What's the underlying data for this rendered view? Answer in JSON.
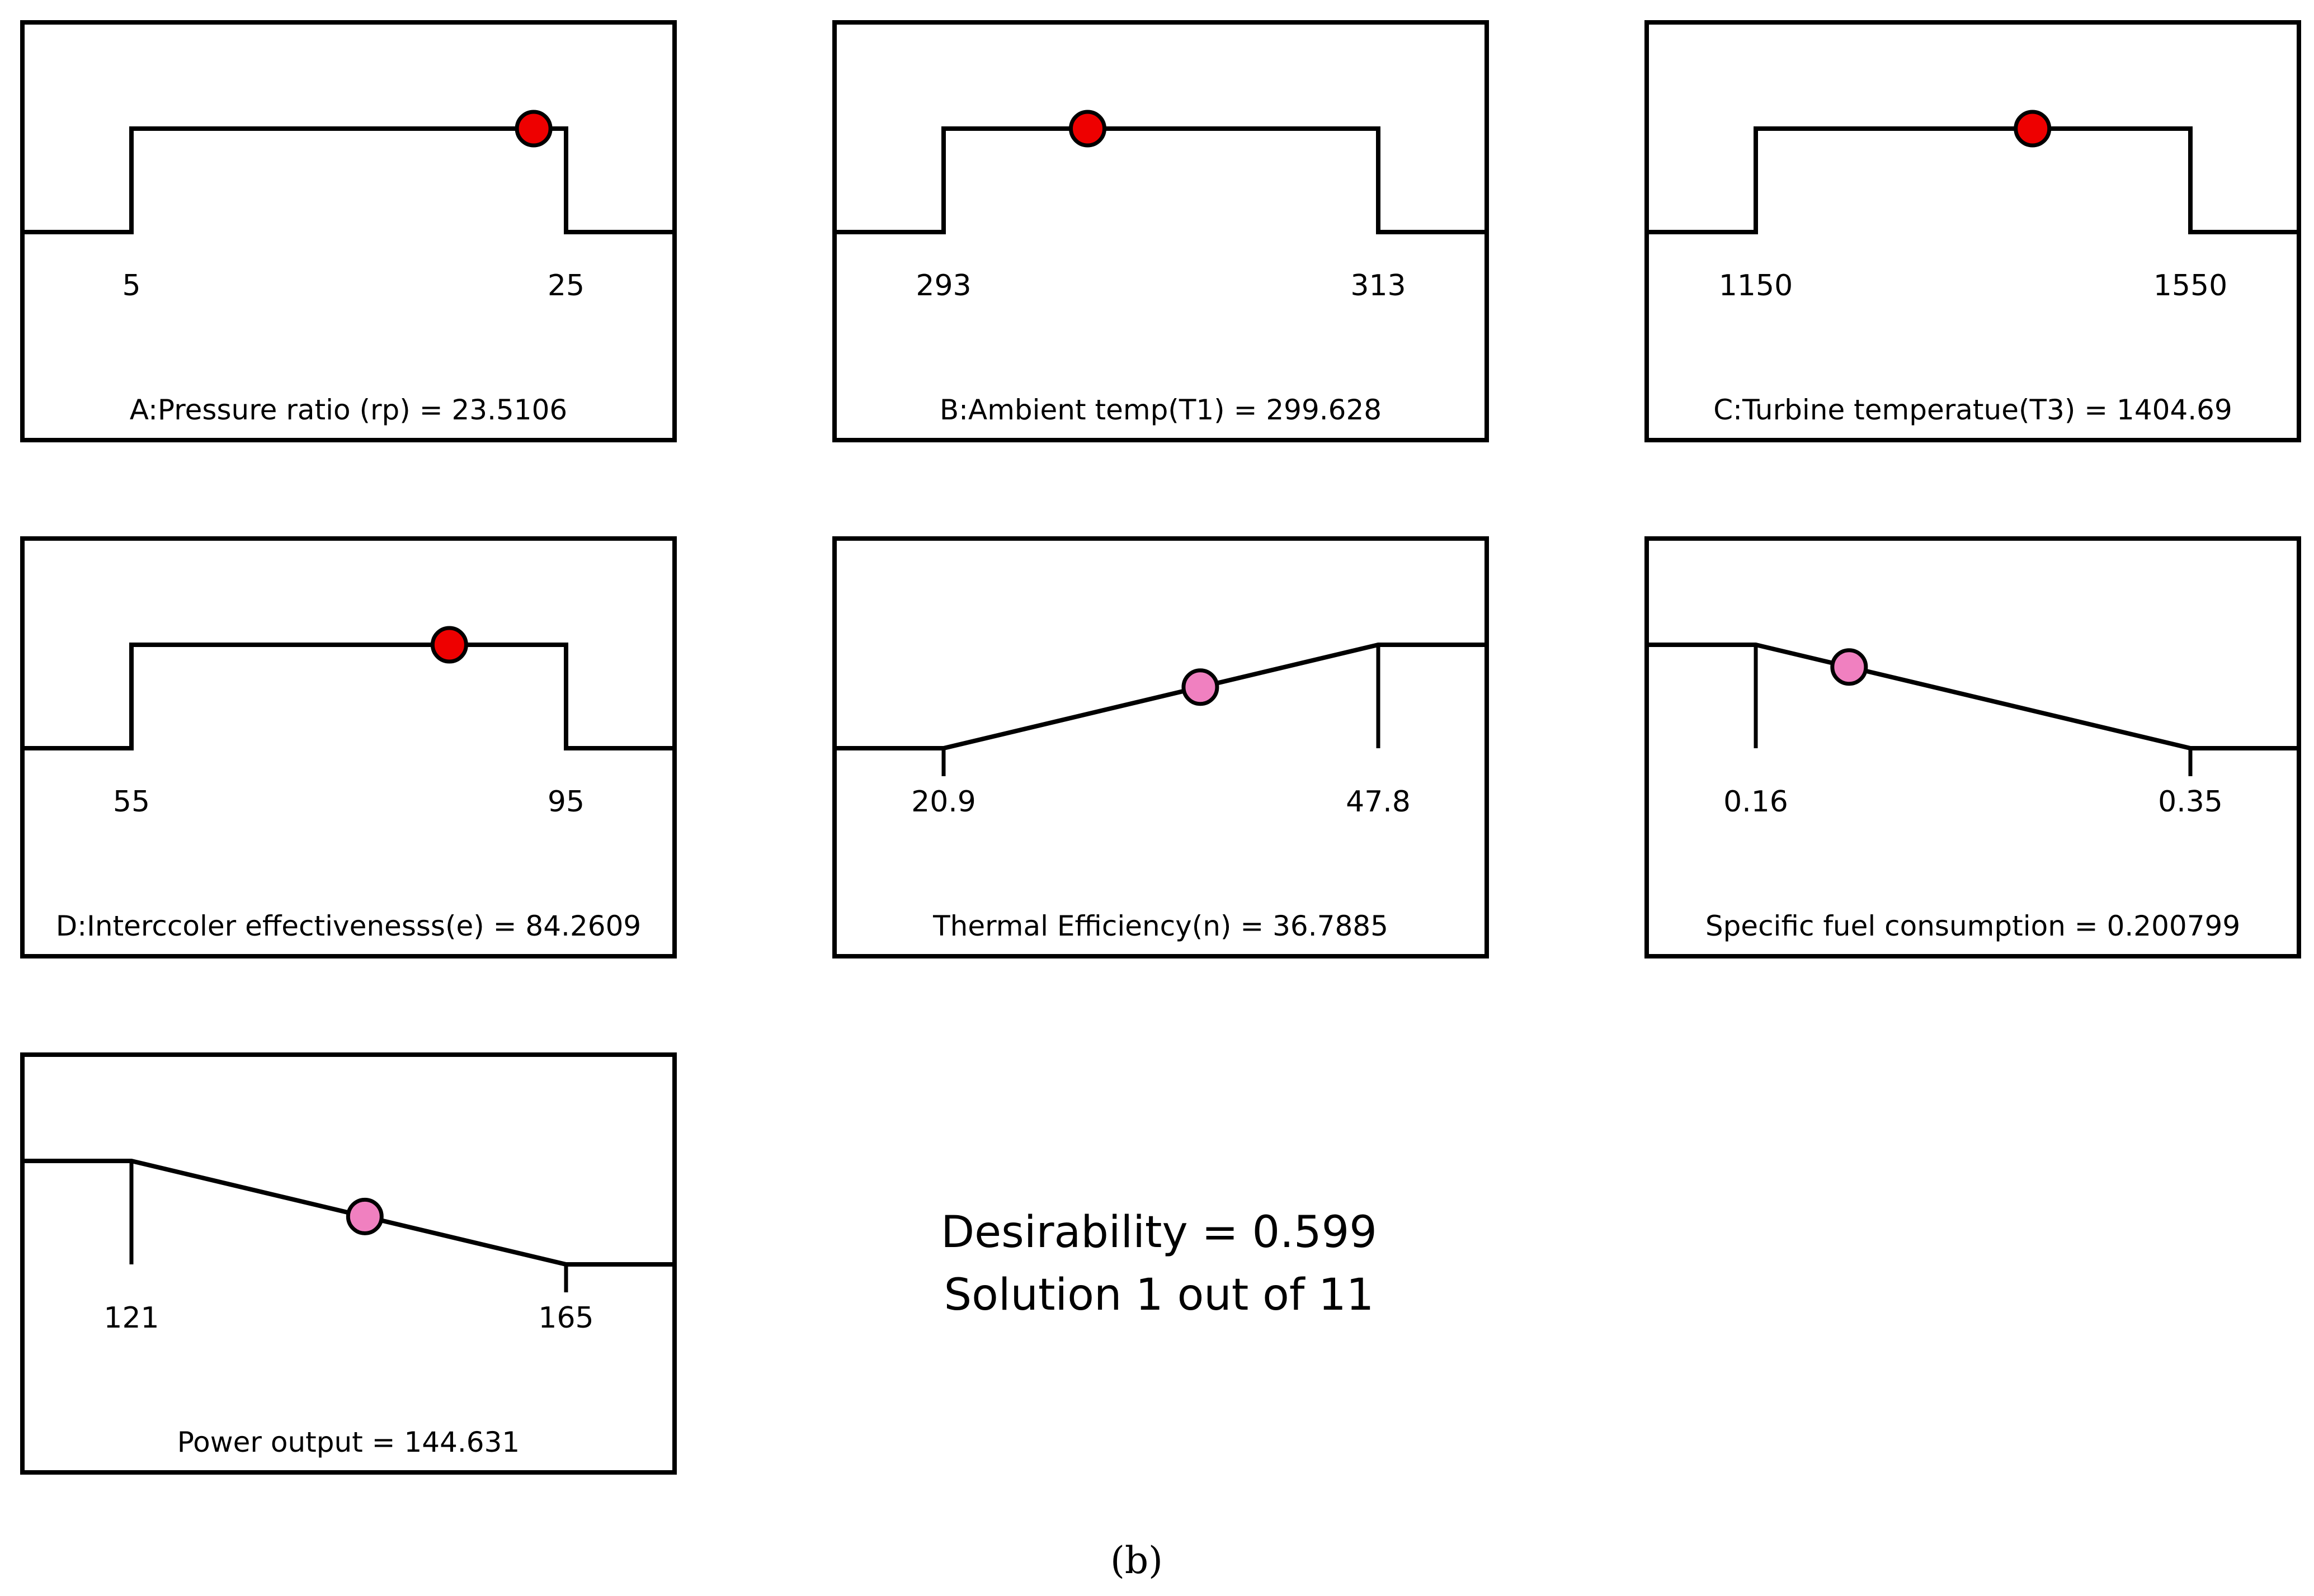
{
  "chart_data": [
    {
      "type": "line",
      "kind": "factor",
      "label": "A:Pressure ratio (rp) = 23.5106",
      "low_label": "5",
      "high_label": "25",
      "low": 5,
      "high": 25,
      "value": 23.5106,
      "shape": "in-range",
      "marker_color": "#ee0000"
    },
    {
      "type": "line",
      "kind": "factor",
      "label": "B:Ambient temp(T1) = 299.628",
      "low_label": "293",
      "high_label": "313",
      "low": 293,
      "high": 313,
      "value": 299.628,
      "shape": "in-range",
      "marker_color": "#ee0000"
    },
    {
      "type": "line",
      "kind": "factor",
      "label": "C:Turbine temperatue(T3) = 1404.69",
      "low_label": "1150",
      "high_label": "1550",
      "low": 1150,
      "high": 1550,
      "value": 1404.69,
      "shape": "in-range",
      "marker_color": "#ee0000"
    },
    {
      "type": "line",
      "kind": "factor",
      "label": "D:Interccoler effectivenesss(e) = 84.2609",
      "low_label": "55",
      "high_label": "95",
      "low": 55,
      "high": 95,
      "value": 84.2609,
      "shape": "in-range",
      "marker_color": "#ee0000"
    },
    {
      "type": "line",
      "kind": "response",
      "label": "Thermal Efficiency(n) = 36.7885",
      "low_label": "20.9",
      "high_label": "47.8",
      "low": 20.9,
      "high": 47.8,
      "value": 36.7885,
      "shape": "maximize",
      "marker_color": "#f080c0"
    },
    {
      "type": "line",
      "kind": "response",
      "label": "Specific fuel consumption = 0.200799",
      "low_label": "0.16",
      "high_label": "0.35",
      "low": 0.16,
      "high": 0.35,
      "value": 0.200799,
      "shape": "minimize",
      "marker_color": "#f080c0"
    },
    {
      "type": "line",
      "kind": "response",
      "label": "Power output = 144.631",
      "low_label": "121",
      "high_label": "165",
      "low": 121,
      "high": 165,
      "value": 144.631,
      "shape": "minimize",
      "marker_color": "#f080c0"
    }
  ],
  "summary": {
    "desirability": "Desirability = 0.599",
    "solution": "Solution 1 out of 11"
  },
  "caption": "(b)"
}
